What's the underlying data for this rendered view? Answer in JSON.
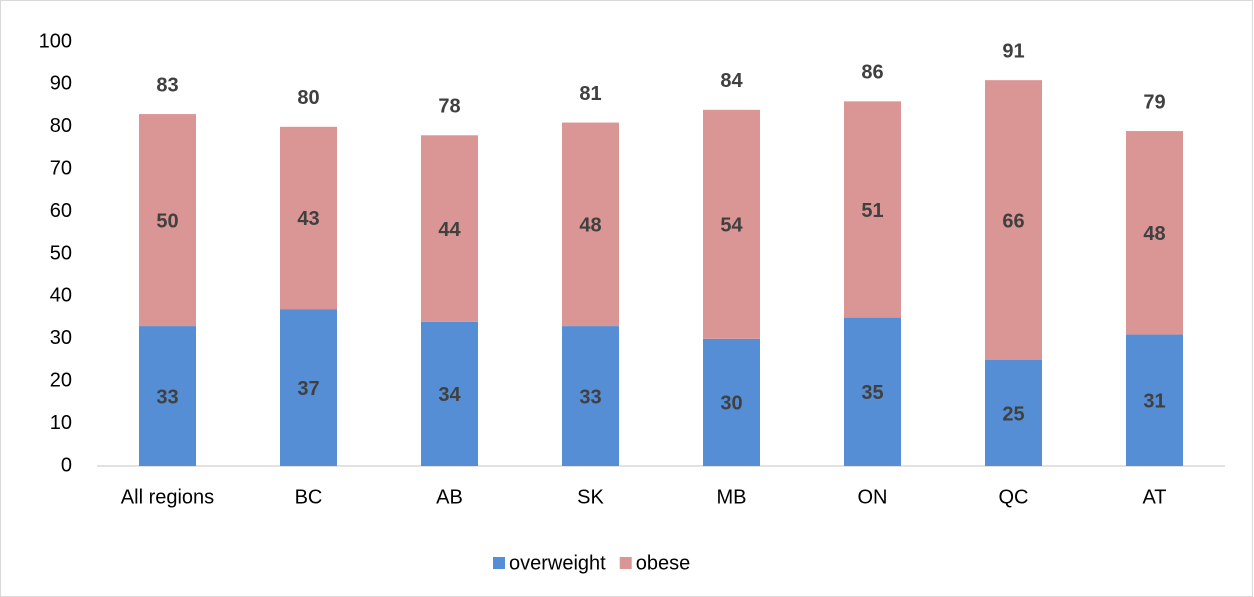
{
  "chart_data": {
    "type": "stacked-bar",
    "categories": [
      "All regions",
      "BC",
      "AB",
      "SK",
      "MB",
      "ON",
      "QC",
      "AT"
    ],
    "series": [
      {
        "name": "overweight",
        "color": "#558ed5",
        "values": [
          33,
          37,
          34,
          33,
          30,
          35,
          25,
          31
        ]
      },
      {
        "name": "obese",
        "color": "#d99694",
        "values": [
          50,
          43,
          44,
          48,
          54,
          51,
          66,
          48
        ]
      }
    ],
    "totals": [
      83,
      80,
      78,
      81,
      84,
      86,
      91,
      79
    ],
    "ylim": [
      0,
      100
    ],
    "yticks": [
      0,
      10,
      20,
      30,
      40,
      50,
      60,
      70,
      80,
      90,
      100
    ],
    "grid": false,
    "legend": "bottom"
  }
}
